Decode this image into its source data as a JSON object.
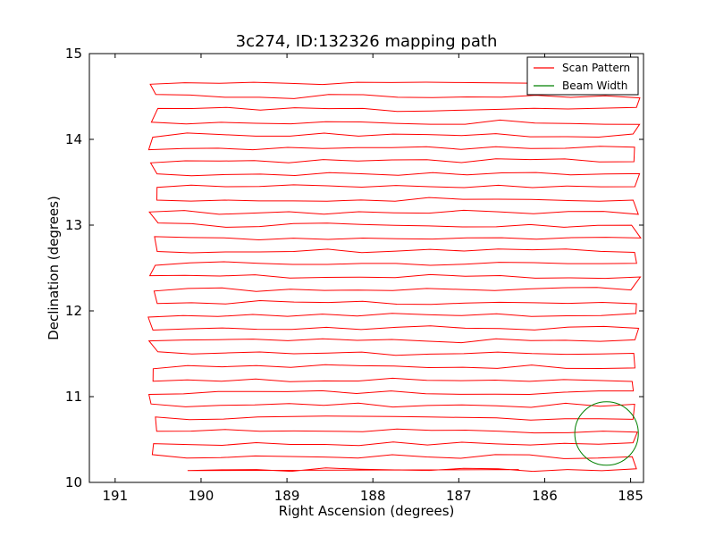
{
  "chart_data": {
    "type": "line",
    "title": "3c274, ID:132326 mapping path",
    "xlabel": "Right Ascension (degrees)",
    "ylabel": "Declination (degrees)",
    "xlim": [
      191.3,
      184.85
    ],
    "ylim": [
      10,
      15
    ],
    "x_inverted": true,
    "xticks": [
      191,
      190,
      189,
      188,
      187,
      186,
      185
    ],
    "yticks": [
      10,
      11,
      12,
      13,
      14,
      15
    ],
    "grid": false,
    "legend_position": "top-right",
    "series": [
      {
        "name": "Scan Pattern",
        "color": "#ff0000",
        "style": "boustrophedon raster scan",
        "x_range": [
          190.5,
          185.0
        ],
        "dec_rows": [
          10.15,
          10.3,
          10.45,
          10.6,
          10.75,
          10.9,
          11.05,
          11.2,
          11.35,
          11.5,
          11.65,
          11.8,
          11.95,
          12.1,
          12.25,
          12.4,
          12.55,
          12.7,
          12.85,
          13.0,
          13.15,
          13.3,
          13.45,
          13.6,
          13.75,
          13.9,
          14.05,
          14.2,
          14.35,
          14.5,
          14.65
        ],
        "start": [
          186.3,
          10.15
        ],
        "end": [
          188.9,
          14.65
        ]
      },
      {
        "name": "Beam Width",
        "color": "#008000",
        "shape": "circle",
        "center": [
          185.28,
          10.57
        ],
        "radius_deg": 0.37
      }
    ]
  }
}
